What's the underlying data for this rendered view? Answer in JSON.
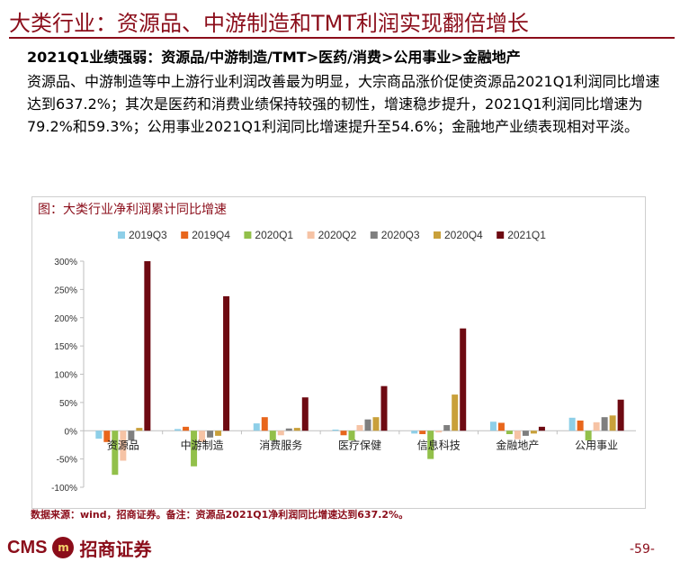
{
  "header": {
    "title": "大类行业：资源品、中游制造和TMT利润实现翻倍增长",
    "subhead": "2021Q1业绩强弱：资源品/中游制造/TMT>医药/消费>公用事业>金融地产",
    "body": "资源品、中游制造等中上游行业利润改善最为明显，大宗商品涨价促使资源品2021Q1利润同比增速达到637.2%；其次是医药和消费业绩保持较强的韧性，增速稳步提升，2021Q1利润同比增速为79.2%和59.3%；公用事业2021Q1利润同比增速提升至54.6%；金融地产业绩表现相对平淡。"
  },
  "chart_title": "图：大类行业净利润累计同比增速",
  "source": "数据来源：wind，招商证券。备注：资源品2021Q1净利润同比增速达到637.2%。",
  "footer": {
    "logo_en": "CMS",
    "logo_mark": "m",
    "logo_cn": "招商证券",
    "page": "-59-"
  },
  "colors": {
    "2019Q3": "#8ECFE8",
    "2019Q4": "#E8661C",
    "2020Q1": "#92C04A",
    "2020Q2": "#F6C3A5",
    "2020Q3": "#7F7F7F",
    "2020Q4": "#C9A03A",
    "2021Q1": "#6E0A12"
  },
  "chart_data": {
    "type": "bar",
    "title": "图：大类行业净利润累计同比增速",
    "categories": [
      "资源品",
      "中游制造",
      "消费服务",
      "医疗保健",
      "信息科技",
      "金融地产",
      "公用事业"
    ],
    "series": [
      {
        "name": "2019Q3",
        "values": [
          -14,
          3,
          13,
          2,
          -5,
          16,
          23
        ]
      },
      {
        "name": "2019Q4",
        "values": [
          -20,
          7,
          24,
          -8,
          -6,
          14,
          18
        ]
      },
      {
        "name": "2020Q1",
        "values": [
          -78,
          -63,
          -17,
          -17,
          -50,
          -6,
          -17
        ]
      },
      {
        "name": "2020Q2",
        "values": [
          -53,
          -20,
          -8,
          10,
          -3,
          -15,
          15
        ]
      },
      {
        "name": "2020Q3",
        "values": [
          -17,
          -12,
          4,
          20,
          10,
          -9,
          24
        ]
      },
      {
        "name": "2020Q4",
        "values": [
          5,
          -9,
          5,
          24,
          64,
          -5,
          27
        ]
      },
      {
        "name": "2021Q1",
        "values": [
          300,
          238,
          59,
          79,
          181,
          7,
          55
        ]
      }
    ],
    "ylim": [
      -100,
      300
    ],
    "yticks": [
      "-100%",
      "-50%",
      "0%",
      "50%",
      "100%",
      "150%",
      "200%",
      "250%",
      "300%"
    ],
    "ytick_values": [
      -100,
      -50,
      0,
      50,
      100,
      150,
      200,
      250,
      300
    ],
    "legend": "top",
    "grid": false
  }
}
